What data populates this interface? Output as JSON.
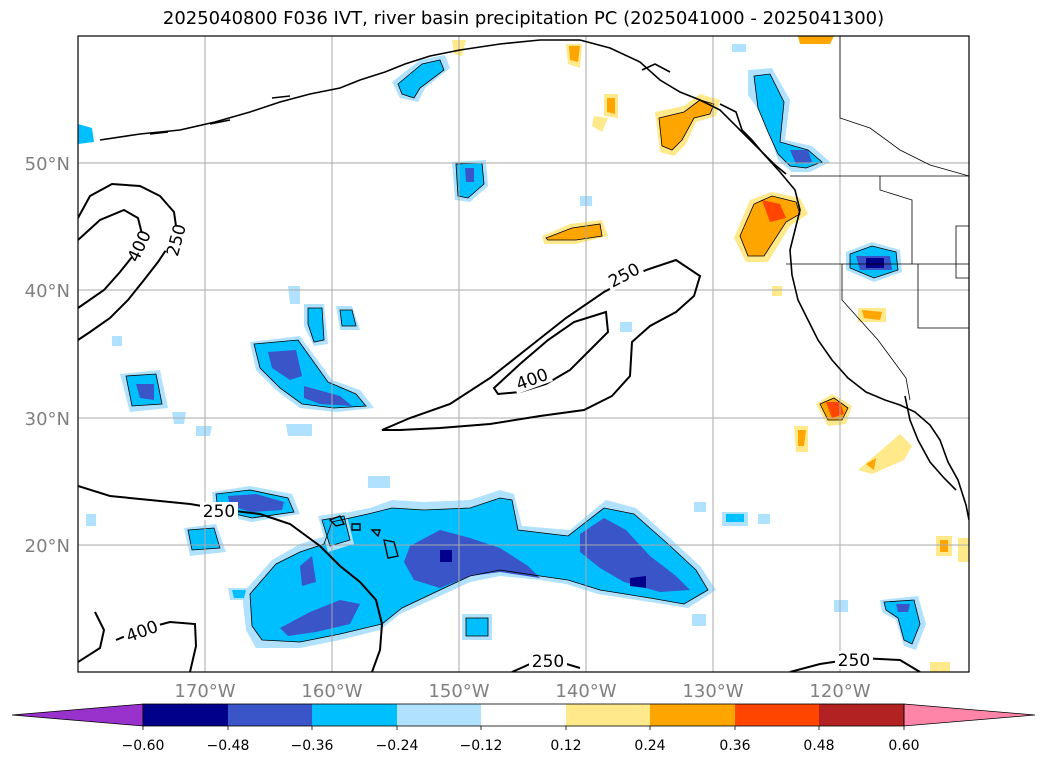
{
  "title": "2025040800 F036 IVT, river basin precipitation PC (2025041000 - 2025041300)",
  "map": {
    "lon_labels": [
      "170°W",
      "160°W",
      "150°W",
      "140°W",
      "130°W",
      "120°W"
    ],
    "lat_labels": [
      "50°N",
      "40°N",
      "30°N",
      "20°N"
    ],
    "contour_labels": [
      "400",
      "250",
      "250",
      "400",
      "250",
      "400",
      "250",
      "250"
    ]
  },
  "colorbar": {
    "ticks": [
      "−0.60",
      "−0.48",
      "−0.36",
      "−0.24",
      "−0.12",
      "0.12",
      "0.24",
      "0.36",
      "0.48",
      "0.60"
    ],
    "colors": [
      "#9932cc",
      "#00008b",
      "#3a55c8",
      "#00bfff",
      "#b0e2ff",
      "#ffffff",
      "#ffe98a",
      "#ffa500",
      "#ff4500",
      "#b22222",
      "#ff85a8"
    ]
  },
  "chart_data": {
    "type": "heatmap",
    "title": "2025040800 F036 IVT, river basin precipitation PC (2025041000 - 2025041300)",
    "x_ticks": [
      "170°W",
      "160°W",
      "150°W",
      "140°W",
      "130°W",
      "120°W"
    ],
    "y_ticks": [
      "50°N",
      "40°N",
      "30°N",
      "20°N"
    ],
    "xlim": [
      -180,
      -110
    ],
    "ylim": [
      10,
      60
    ],
    "contour_levels": [
      250,
      400
    ],
    "colorbar_levels": [
      -0.6,
      -0.48,
      -0.36,
      -0.24,
      -0.12,
      0.12,
      0.24,
      0.36,
      0.48,
      0.6
    ],
    "colorbar_extend": "both"
  }
}
